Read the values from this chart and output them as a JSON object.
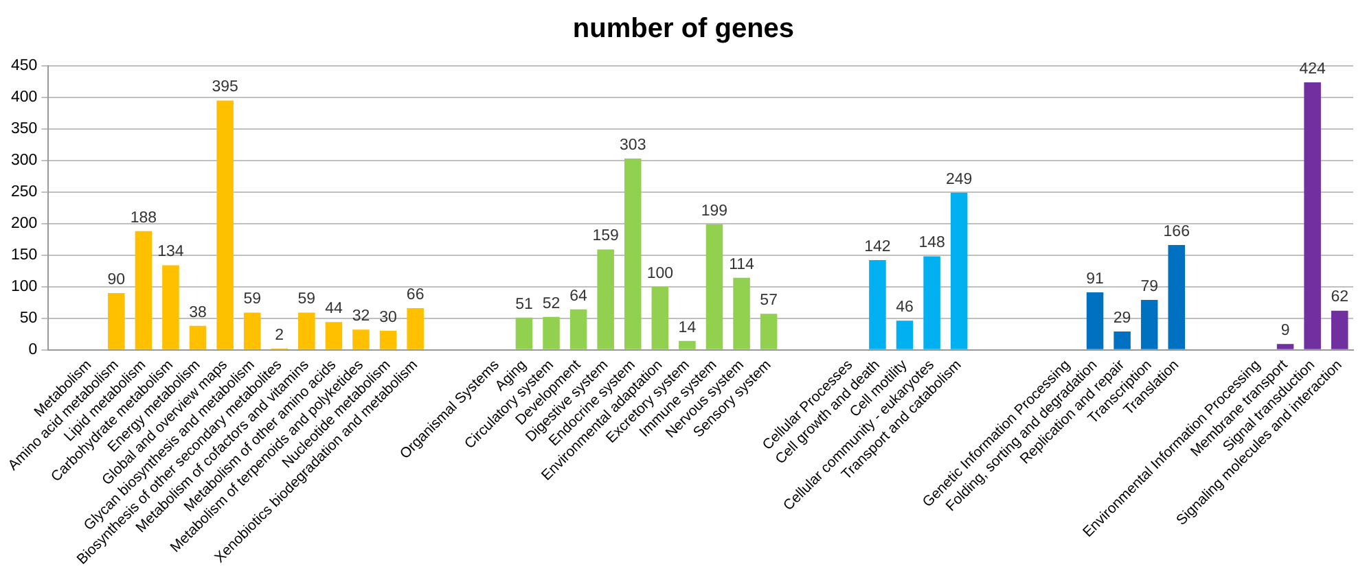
{
  "chart_data": {
    "type": "bar",
    "title": "number of genes",
    "categories": [
      null,
      "Metabolism",
      "Amino acid metabolism",
      "Lipid metabolism",
      "Carbohydrate metabolism",
      "Energy metabolism",
      "Global and overview maps",
      "Glycan biosynthesis and metabolism",
      "Biosynthesis of other secondary metabolites",
      "Metabolism of cofactors and vitamins",
      "Metabolism of other amino acids",
      "Metabolism of terpenoids and polyketides",
      "Nucleotide metabolism",
      "Xenobiotics biodegradation and metabolism",
      null,
      null,
      "Organismal Systems",
      "Aging",
      "Circulatory system",
      "Development",
      "Digestive system",
      "Endocrine system",
      "Environmental adaptation",
      "Excretory system",
      "Immune system",
      "Nervous system",
      "Sensory system",
      null,
      null,
      "Cellular Processes",
      "Cell growth and death",
      "Cell motility",
      "Cellular community - eukaryotes",
      "Transport and catabolism",
      null,
      null,
      null,
      "Genetic Information Processing",
      "Folding, sorting and degradation",
      "Replication and repair",
      "Transcription",
      "Translation",
      null,
      null,
      "Environmental Information Processing",
      "Membrane transport",
      "Signal transduction",
      "Signaling molecules and interaction"
    ],
    "values": [
      null,
      null,
      90,
      188,
      134,
      38,
      395,
      59,
      2,
      59,
      44,
      32,
      30,
      66,
      null,
      null,
      null,
      51,
      52,
      64,
      159,
      303,
      100,
      14,
      199,
      114,
      57,
      null,
      null,
      null,
      142,
      46,
      148,
      249,
      null,
      null,
      null,
      null,
      91,
      29,
      79,
      166,
      null,
      null,
      null,
      9,
      424,
      62
    ],
    "colors": [
      "#ffc000",
      "#ffc000",
      "#ffc000",
      "#ffc000",
      "#ffc000",
      "#ffc000",
      "#ffc000",
      "#ffc000",
      "#ffc000",
      "#ffc000",
      "#ffc000",
      "#ffc000",
      "#ffc000",
      "#ffc000",
      "#92d050",
      "#92d050",
      "#92d050",
      "#92d050",
      "#92d050",
      "#92d050",
      "#92d050",
      "#92d050",
      "#92d050",
      "#92d050",
      "#92d050",
      "#92d050",
      "#92d050",
      "#00b0f0",
      "#00b0f0",
      "#00b0f0",
      "#00b0f0",
      "#00b0f0",
      "#00b0f0",
      "#00b0f0",
      "#0070c0",
      "#0070c0",
      "#0070c0",
      "#0070c0",
      "#0070c0",
      "#0070c0",
      "#0070c0",
      "#0070c0",
      "#7030a0",
      "#7030a0",
      "#7030a0",
      "#7030a0",
      "#7030a0",
      "#7030a0"
    ],
    "ylim": [
      0,
      450
    ],
    "yticks": [
      0,
      50,
      100,
      150,
      200,
      250,
      300,
      350,
      400,
      450
    ],
    "grid": "y",
    "legend": false,
    "data_labels": true
  }
}
